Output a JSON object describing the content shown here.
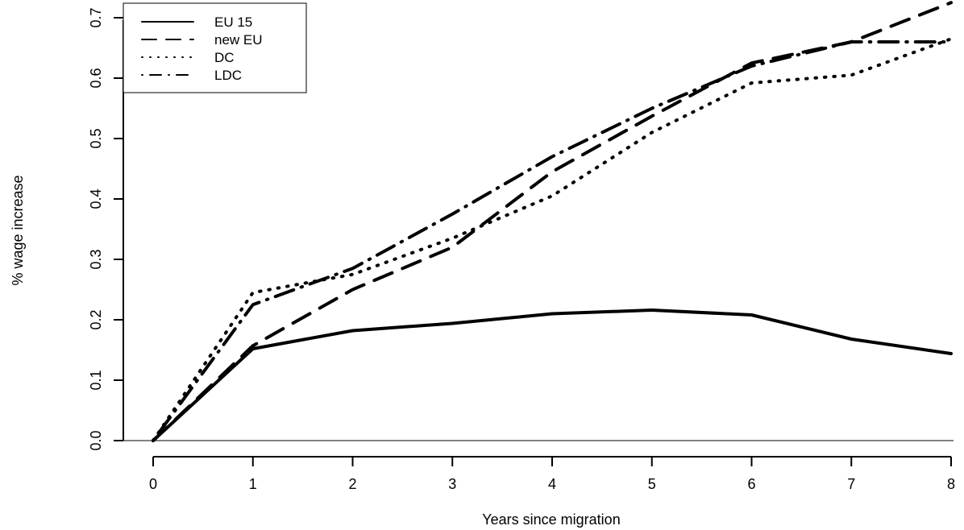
{
  "chart_data": {
    "type": "line",
    "title": "",
    "xlabel": "Years since migration",
    "ylabel": "% wage increase",
    "x": [
      0,
      1,
      2,
      3,
      4,
      5,
      6,
      7,
      8
    ],
    "xlim": [
      0,
      8
    ],
    "ylim": [
      0,
      0.7
    ],
    "x_ticks": [
      "0",
      "1",
      "2",
      "3",
      "4",
      "5",
      "6",
      "7",
      "8"
    ],
    "y_ticks": [
      "0.0",
      "0.1",
      "0.2",
      "0.3",
      "0.4",
      "0.5",
      "0.6",
      "0.7"
    ],
    "grid": false,
    "legend_position": "top-left",
    "series": [
      {
        "name": "EU 15",
        "style": "solid",
        "values": [
          0,
          0.152,
          0.182,
          0.194,
          0.21,
          0.216,
          0.208,
          0.168,
          0.144
        ]
      },
      {
        "name": "new EU",
        "style": "dashed",
        "values": [
          0,
          0.157,
          0.25,
          0.32,
          0.445,
          0.537,
          0.625,
          0.66,
          0.725
        ]
      },
      {
        "name": "DC",
        "style": "dotted",
        "values": [
          0,
          0.245,
          0.275,
          0.335,
          0.405,
          0.51,
          0.592,
          0.605,
          0.665
        ]
      },
      {
        "name": "LDC",
        "style": "dotdash",
        "values": [
          0,
          0.225,
          0.285,
          0.375,
          0.47,
          0.55,
          0.62,
          0.66,
          0.66
        ]
      }
    ]
  }
}
